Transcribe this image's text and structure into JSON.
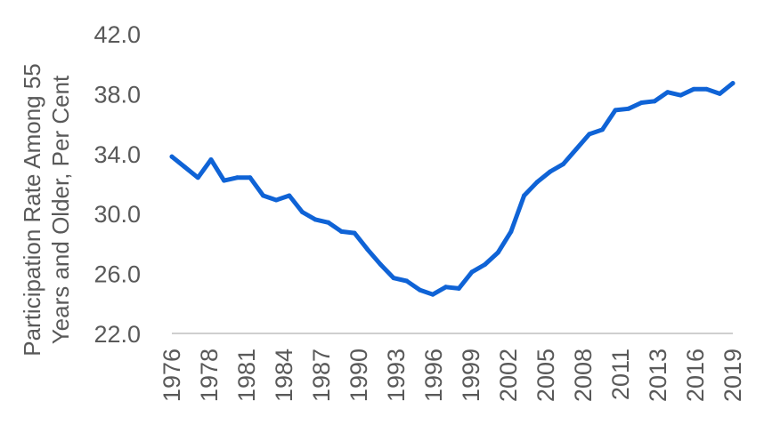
{
  "chart_data": {
    "type": "line",
    "ylabel_lines": [
      "Participation Rate Among 55",
      "Years and Older, Per Cent"
    ],
    "ylim": [
      22.0,
      42.0
    ],
    "y_ticks": [
      "42.0",
      "38.0",
      "34.0",
      "30.0",
      "26.0",
      "22.0"
    ],
    "x_tick_labels": [
      "1976",
      "1978",
      "1981",
      "1984",
      "1987",
      "1990",
      "1993",
      "1996",
      "1999",
      "2002",
      "2005",
      "2008",
      "2011",
      "2013",
      "2016",
      "2019"
    ],
    "series_color": "#0f63d6",
    "grid": false,
    "x": [
      1976,
      1977,
      1978,
      1979,
      1980,
      1981,
      1982,
      1983,
      1984,
      1985,
      1986,
      1987,
      1988,
      1989,
      1990,
      1991,
      1992,
      1993,
      1994,
      1995,
      1996,
      1997,
      1998,
      1999,
      2000,
      2001,
      2002,
      2003,
      2004,
      2005,
      2006,
      2007,
      2008,
      2009,
      2010,
      2011,
      2012,
      2013,
      2014,
      2015,
      2016,
      2017,
      2018,
      2019
    ],
    "series": [
      {
        "values": [
          33.8,
          33.1,
          32.4,
          33.6,
          32.2,
          32.4,
          32.4,
          31.2,
          30.9,
          31.2,
          30.1,
          29.6,
          29.4,
          28.8,
          28.7,
          27.6,
          26.6,
          25.7,
          25.5,
          24.9,
          24.6,
          25.1,
          25.0,
          26.1,
          26.6,
          27.4,
          28.8,
          31.2,
          32.1,
          32.8,
          33.3,
          34.3,
          35.3,
          35.6,
          36.9,
          37.0,
          37.4,
          37.5,
          38.1,
          37.9,
          38.3,
          38.3,
          38.0,
          38.7
        ]
      }
    ]
  }
}
